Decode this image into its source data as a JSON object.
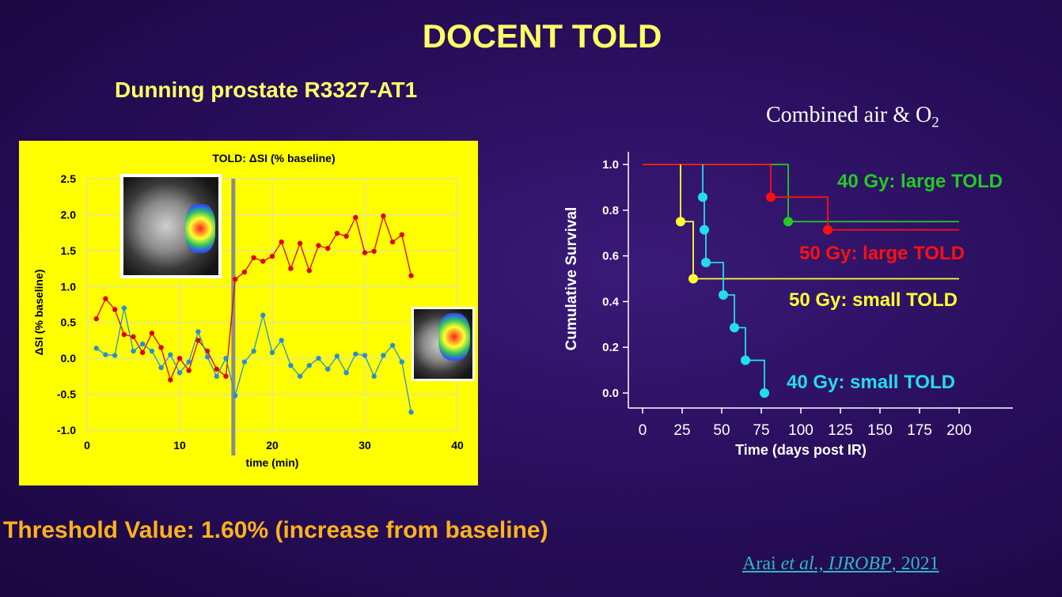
{
  "slide": {
    "title": "DOCENT TOLD",
    "left_subtitle": "Dunning prostate R3327-AT1",
    "right_subtitle_main": "Combined air  & O",
    "right_subtitle_sub": "2",
    "threshold": "Threshold Value: 1.60% (increase from baseline)",
    "citation": {
      "part1": "Arai ",
      "italic1": "et al., IJROBP",
      "part2": ", 2021"
    }
  },
  "colors": {
    "background": "#2a0f5e",
    "title": "#ffff66",
    "threshold": "#ffb21c",
    "citation": "#30b8c0",
    "left_panel": "#ffff00",
    "red_series": "#e00000",
    "blue_series": "#2a8fd0",
    "green_curve": "#22cc22",
    "red_curve": "#ff1010",
    "yellow_curve": "#ffff33",
    "cyan_curve": "#22ddee"
  },
  "chart_data": [
    {
      "type": "line",
      "title": "TOLD: ΔSI (% baseline)",
      "xlabel": "time (min)",
      "ylabel": "ΔSI (% baseline)",
      "xlim": [
        0,
        40
      ],
      "ylim": [
        -1.0,
        2.5
      ],
      "x_ticks": [
        "0",
        "10",
        "20",
        "30",
        "40"
      ],
      "y_ticks": [
        "2.5",
        "2.0",
        "1.5",
        "1.0",
        "0.5",
        "0.0",
        "-0.5",
        "-1.0"
      ],
      "y_tick_values": [
        2.5,
        2.0,
        1.5,
        1.0,
        0.5,
        0.0,
        -0.5,
        -1.0
      ],
      "marker_time": 15.8,
      "grid": true,
      "series": [
        {
          "color": "#e00000",
          "points": [
            [
              1,
              0.55
            ],
            [
              2,
              0.83
            ],
            [
              3,
              0.68
            ],
            [
              4,
              0.33
            ],
            [
              5,
              0.3
            ],
            [
              6,
              0.08
            ],
            [
              7,
              0.35
            ],
            [
              8,
              0.15
            ],
            [
              9,
              -0.3
            ],
            [
              10,
              0.0
            ],
            [
              11,
              -0.17
            ],
            [
              12,
              0.25
            ],
            [
              13,
              0.1
            ],
            [
              14,
              -0.15
            ],
            [
              15,
              -0.25
            ],
            [
              16,
              1.1
            ],
            [
              17,
              1.2
            ],
            [
              18,
              1.4
            ],
            [
              19,
              1.35
            ],
            [
              20,
              1.42
            ],
            [
              21,
              1.62
            ],
            [
              22,
              1.25
            ],
            [
              23,
              1.6
            ],
            [
              24,
              1.22
            ],
            [
              25,
              1.57
            ],
            [
              26,
              1.53
            ],
            [
              27,
              1.74
            ],
            [
              28,
              1.7
            ],
            [
              29,
              1.96
            ],
            [
              30,
              1.47
            ],
            [
              31,
              1.49
            ],
            [
              32,
              1.98
            ],
            [
              33,
              1.62
            ],
            [
              34,
              1.72
            ],
            [
              35,
              1.15
            ]
          ]
        },
        {
          "color": "#2a8fd0",
          "points": [
            [
              1,
              0.14
            ],
            [
              2,
              0.05
            ],
            [
              3,
              0.04
            ],
            [
              4,
              0.7
            ],
            [
              5,
              0.1
            ],
            [
              6,
              0.2
            ],
            [
              7,
              0.1
            ],
            [
              8,
              -0.13
            ],
            [
              9,
              0.05
            ],
            [
              10,
              -0.2
            ],
            [
              11,
              -0.05
            ],
            [
              12,
              0.37
            ],
            [
              13,
              0.02
            ],
            [
              14,
              -0.25
            ],
            [
              15,
              0.0
            ],
            [
              16,
              -0.52
            ],
            [
              17,
              -0.05
            ],
            [
              18,
              0.1
            ],
            [
              19,
              0.6
            ],
            [
              20,
              0.08
            ],
            [
              21,
              0.25
            ],
            [
              22,
              -0.1
            ],
            [
              23,
              -0.25
            ],
            [
              24,
              -0.1
            ],
            [
              25,
              0.0
            ],
            [
              26,
              -0.15
            ],
            [
              27,
              0.03
            ],
            [
              28,
              -0.2
            ],
            [
              29,
              0.06
            ],
            [
              30,
              0.04
            ],
            [
              31,
              -0.25
            ],
            [
              32,
              0.04
            ],
            [
              33,
              0.18
            ],
            [
              34,
              -0.05
            ],
            [
              35,
              -0.75
            ]
          ]
        }
      ]
    },
    {
      "type": "line",
      "subtype": "kaplan-meier",
      "xlabel": "Time (days post IR)",
      "ylabel": "Cumulative Survival",
      "xlim": [
        0,
        200
      ],
      "ylim": [
        0,
        1.0
      ],
      "x_ticks": [
        "0",
        "25",
        "50",
        "75",
        "100",
        "125",
        "150",
        "175",
        "200"
      ],
      "x_tick_values": [
        0,
        25,
        50,
        75,
        100,
        125,
        150,
        175,
        200
      ],
      "y_ticks": [
        "1.0",
        "0.8",
        "0.6",
        "0.4",
        "0.2",
        "0.0"
      ],
      "y_tick_values": [
        1.0,
        0.8,
        0.6,
        0.4,
        0.2,
        0.0
      ],
      "series": [
        {
          "name": "40 Gy: large TOLD",
          "color": "#22cc22",
          "steps": [
            [
              0,
              1.0
            ],
            [
              92,
              1.0
            ],
            [
              92,
              0.75
            ],
            [
              200,
              0.75
            ]
          ],
          "events": [
            [
              92,
              0.75
            ]
          ]
        },
        {
          "name": "50 Gy: large TOLD",
          "color": "#ff1010",
          "steps": [
            [
              0,
              1.0
            ],
            [
              81,
              1.0
            ],
            [
              81,
              0.857
            ],
            [
              117,
              0.857
            ],
            [
              117,
              0.714
            ],
            [
              200,
              0.714
            ]
          ],
          "events": [
            [
              81,
              0.857
            ],
            [
              117,
              0.714
            ]
          ]
        },
        {
          "name": "50 Gy: small TOLD",
          "color": "#ffff33",
          "steps": [
            [
              24,
              1.0
            ],
            [
              24,
              0.75
            ],
            [
              32,
              0.75
            ],
            [
              32,
              0.5
            ],
            [
              200,
              0.5
            ]
          ],
          "events": [
            [
              24,
              0.75
            ],
            [
              32,
              0.5
            ]
          ]
        },
        {
          "name": "40 Gy: small TOLD",
          "color": "#22ddee",
          "steps": [
            [
              38,
              1.0
            ],
            [
              38,
              0.857
            ],
            [
              39,
              0.857
            ],
            [
              39,
              0.714
            ],
            [
              40,
              0.714
            ],
            [
              40,
              0.571
            ],
            [
              51,
              0.571
            ],
            [
              51,
              0.429
            ],
            [
              58,
              0.429
            ],
            [
              58,
              0.286
            ],
            [
              65,
              0.286
            ],
            [
              65,
              0.143
            ],
            [
              77,
              0.143
            ],
            [
              77,
              0.0
            ]
          ],
          "events": [
            [
              38,
              0.857
            ],
            [
              39,
              0.714
            ],
            [
              40,
              0.571
            ],
            [
              51,
              0.429
            ],
            [
              58,
              0.286
            ],
            [
              65,
              0.143
            ],
            [
              77,
              0.0
            ]
          ]
        }
      ]
    }
  ]
}
